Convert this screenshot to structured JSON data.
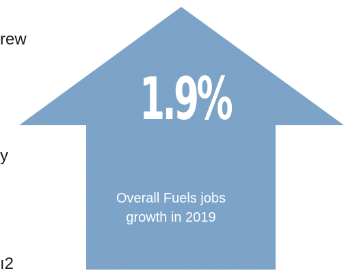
{
  "stat": {
    "value": "1.9%",
    "caption_line1": "Overall Fuels jobs",
    "caption_line2": "growth in 2019"
  },
  "cut_off_text": {
    "line1": "rew",
    "line2": "y",
    "line3": "ı2"
  },
  "colors": {
    "arrow_fill": "#7ba3c8",
    "text_white": "#ffffff",
    "body_text": "#1a1a1a"
  },
  "icons": {
    "arrow": "up-arrow-icon"
  }
}
